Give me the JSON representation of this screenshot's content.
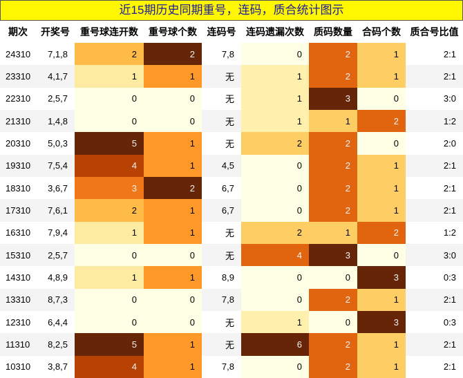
{
  "table": {
    "title": "近15期历史同期重号，连码，质合统计图示",
    "headers": [
      "期次",
      "开奖号",
      "重号球连开数",
      "重号球个数",
      "连码号",
      "连码遗漏次数",
      "质码数量",
      "合码个数",
      "质合号比值"
    ],
    "rows": [
      [
        "24310",
        "7,1,8",
        2,
        2,
        "7,8",
        0,
        2,
        1,
        "2:1"
      ],
      [
        "23310",
        "4,1,7",
        1,
        1,
        "无",
        1,
        2,
        1,
        "2:1"
      ],
      [
        "22310",
        "2,5,7",
        0,
        0,
        "无",
        1,
        3,
        0,
        "3:0"
      ],
      [
        "21310",
        "1,4,8",
        0,
        0,
        "无",
        1,
        1,
        2,
        "1:2"
      ],
      [
        "20310",
        "5,0,3",
        5,
        1,
        "无",
        2,
        2,
        0,
        "2:0"
      ],
      [
        "19310",
        "7,5,4",
        4,
        1,
        "4,5",
        0,
        2,
        1,
        "2:1"
      ],
      [
        "18310",
        "3,6,7",
        3,
        2,
        "6,7",
        0,
        2,
        1,
        "2:1"
      ],
      [
        "17310",
        "7,6,1",
        2,
        1,
        "6,7",
        0,
        2,
        1,
        "2:1"
      ],
      [
        "16310",
        "7,9,4",
        1,
        1,
        "无",
        2,
        1,
        2,
        "1:2"
      ],
      [
        "15310",
        "2,5,7",
        0,
        0,
        "无",
        4,
        3,
        0,
        "3:0"
      ],
      [
        "14310",
        "4,8,9",
        1,
        1,
        "8,9",
        0,
        0,
        3,
        "0:3"
      ],
      [
        "13310",
        "8,7,3",
        0,
        0,
        "7,8",
        0,
        2,
        1,
        "2:1"
      ],
      [
        "12310",
        "6,4,4",
        0,
        0,
        "无",
        1,
        0,
        3,
        "0:3"
      ],
      [
        "11310",
        "8,2,5",
        5,
        1,
        "无",
        6,
        2,
        1,
        "2:1"
      ],
      [
        "10310",
        "3,8,7",
        4,
        1,
        "7,8",
        0,
        2,
        1,
        "2:1"
      ]
    ]
  }
}
